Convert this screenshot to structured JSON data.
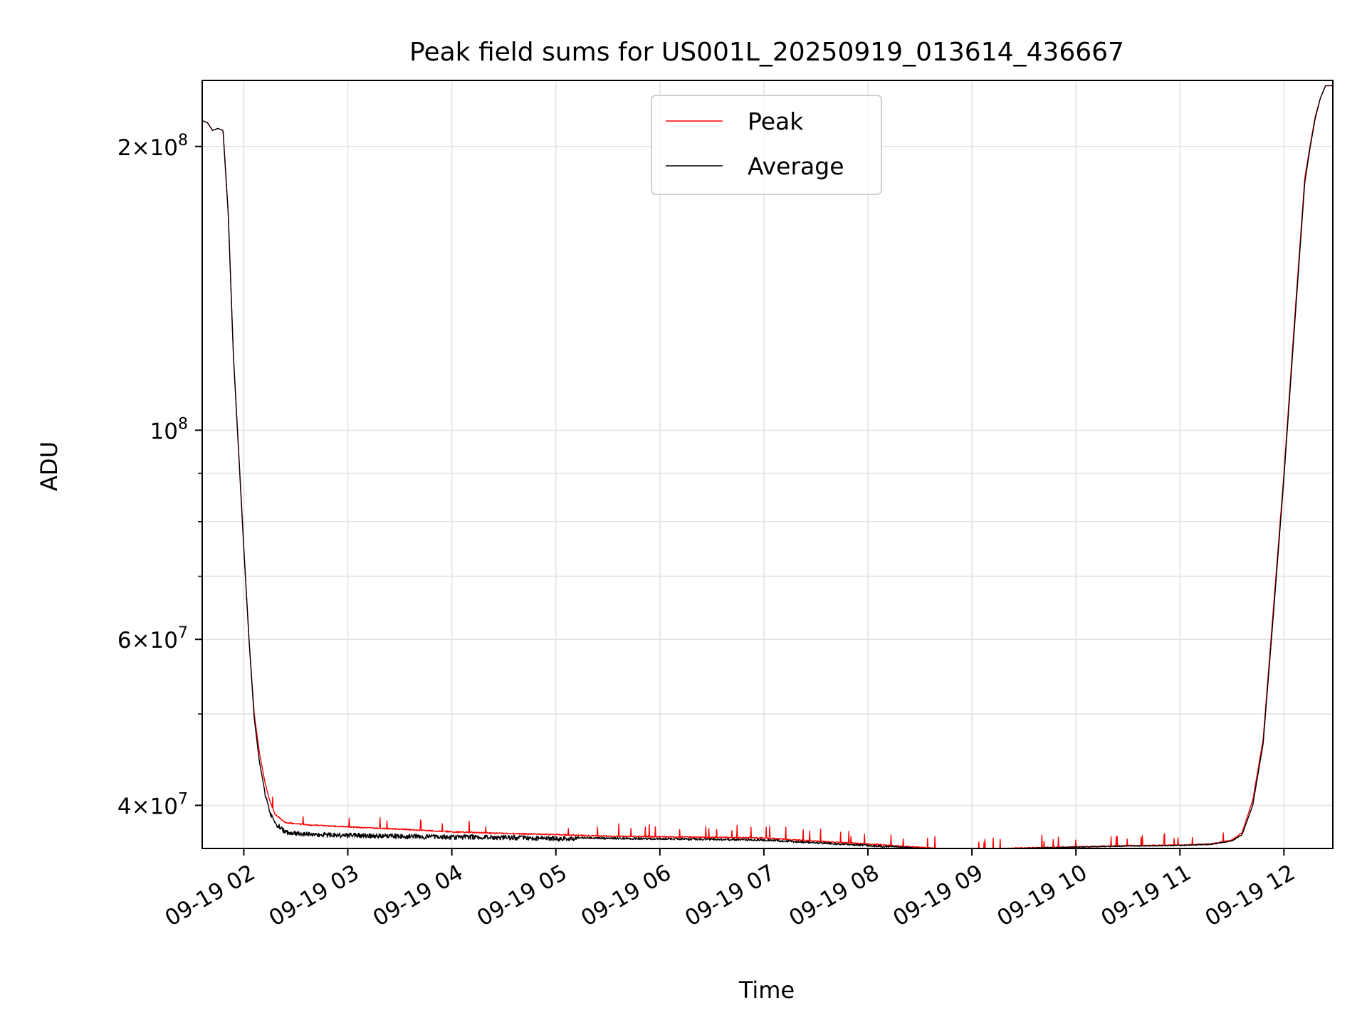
{
  "chart_data": {
    "type": "line",
    "title": "Peak field sums for US001L_20250919_013614_436667",
    "xlabel": "Time",
    "ylabel": "ADU",
    "x_unit": "hour",
    "x_tick_labels": [
      "09-19 02",
      "09-19 03",
      "09-19 04",
      "09-19 05",
      "09-19 06",
      "09-19 07",
      "09-19 08",
      "09-19 09",
      "09-19 10",
      "09-19 11",
      "09-19 12"
    ],
    "x_tick_hours": [
      2,
      3,
      4,
      5,
      6,
      7,
      8,
      9,
      10,
      11,
      12
    ],
    "xlim": [
      1.6,
      12.47
    ],
    "ylim": [
      36000000,
      235000000
    ],
    "yscale": "log",
    "y_major_ticks": [
      {
        "value": 40000000,
        "mant": "4",
        "exp": "7"
      },
      {
        "value": 60000000,
        "mant": "6",
        "exp": "7"
      },
      {
        "value": 100000000,
        "mant": "",
        "exp": "8"
      },
      {
        "value": 200000000,
        "mant": "2",
        "exp": "8"
      }
    ],
    "y_minor_ticks": [
      50000000,
      70000000,
      80000000,
      90000000,
      300000000
    ],
    "grid": true,
    "legend_position": "upper-center",
    "series": [
      {
        "name": "Peak",
        "color": "#ff0000",
        "points": [
          [
            1.6,
            213000000
          ],
          [
            1.65,
            212000000
          ],
          [
            1.7,
            208000000
          ],
          [
            1.75,
            209000000
          ],
          [
            1.8,
            208000000
          ],
          [
            1.85,
            170000000
          ],
          [
            1.9,
            120000000
          ],
          [
            1.95,
            95000000
          ],
          [
            2.0,
            75000000
          ],
          [
            2.05,
            60000000
          ],
          [
            2.1,
            50000000
          ],
          [
            2.15,
            45500000
          ],
          [
            2.2,
            42500000
          ],
          [
            2.25,
            40500000
          ],
          [
            2.3,
            39200000
          ],
          [
            2.4,
            38400000
          ],
          [
            2.6,
            38200000
          ],
          [
            3.0,
            38000000
          ],
          [
            3.5,
            37800000
          ],
          [
            4.0,
            37550000
          ],
          [
            4.5,
            37400000
          ],
          [
            5.0,
            37300000
          ],
          [
            5.5,
            37150000
          ],
          [
            6.0,
            37100000
          ],
          [
            6.5,
            37050000
          ],
          [
            7.0,
            37000000
          ],
          [
            7.5,
            36700000
          ],
          [
            8.0,
            36450000
          ],
          [
            8.5,
            36150000
          ],
          [
            8.8,
            35950000
          ],
          [
            9.0,
            35950000
          ],
          [
            9.5,
            36100000
          ],
          [
            10.0,
            36200000
          ],
          [
            10.5,
            36300000
          ],
          [
            11.0,
            36350000
          ],
          [
            11.3,
            36450000
          ],
          [
            11.5,
            36800000
          ],
          [
            11.6,
            37500000
          ],
          [
            11.7,
            40500000
          ],
          [
            11.8,
            47000000
          ],
          [
            11.9,
            65000000
          ],
          [
            12.0,
            90000000
          ],
          [
            12.1,
            130000000
          ],
          [
            12.2,
            185000000
          ],
          [
            12.25,
            200000000
          ],
          [
            12.3,
            215000000
          ],
          [
            12.35,
            225000000
          ],
          [
            12.4,
            232000000
          ],
          [
            12.47,
            232000000
          ]
        ]
      },
      {
        "name": "Average",
        "color": "#000000",
        "points": [
          [
            1.6,
            213000000
          ],
          [
            1.65,
            212000000
          ],
          [
            1.7,
            208000000
          ],
          [
            1.75,
            209000000
          ],
          [
            1.8,
            208000000
          ],
          [
            1.85,
            170000000
          ],
          [
            1.9,
            120000000
          ],
          [
            1.95,
            95000000
          ],
          [
            2.0,
            75000000
          ],
          [
            2.05,
            60000000
          ],
          [
            2.1,
            49500000
          ],
          [
            2.15,
            44500000
          ],
          [
            2.2,
            41500000
          ],
          [
            2.25,
            39600000
          ],
          [
            2.3,
            38500000
          ],
          [
            2.4,
            37700000
          ],
          [
            2.6,
            37500000
          ],
          [
            3.0,
            37400000
          ],
          [
            3.5,
            37300000
          ],
          [
            4.0,
            37250000
          ],
          [
            4.5,
            37200000
          ],
          [
            5.0,
            37100000
          ],
          [
            5.5,
            37000000
          ],
          [
            6.0,
            36950000
          ],
          [
            6.5,
            36900000
          ],
          [
            7.0,
            36850000
          ],
          [
            7.5,
            36600000
          ],
          [
            8.0,
            36350000
          ],
          [
            8.5,
            36050000
          ],
          [
            8.8,
            35900000
          ],
          [
            9.0,
            35900000
          ],
          [
            9.5,
            36050000
          ],
          [
            10.0,
            36150000
          ],
          [
            10.5,
            36250000
          ],
          [
            11.0,
            36300000
          ],
          [
            11.3,
            36400000
          ],
          [
            11.5,
            36700000
          ],
          [
            11.6,
            37300000
          ],
          [
            11.7,
            40000000
          ],
          [
            11.8,
            46500000
          ],
          [
            11.9,
            64000000
          ],
          [
            12.0,
            89000000
          ],
          [
            12.1,
            128000000
          ],
          [
            12.2,
            183000000
          ],
          [
            12.25,
            199000000
          ],
          [
            12.3,
            214000000
          ],
          [
            12.35,
            225000000
          ],
          [
            12.4,
            232000000
          ],
          [
            12.47,
            232000000
          ]
        ]
      }
    ]
  }
}
